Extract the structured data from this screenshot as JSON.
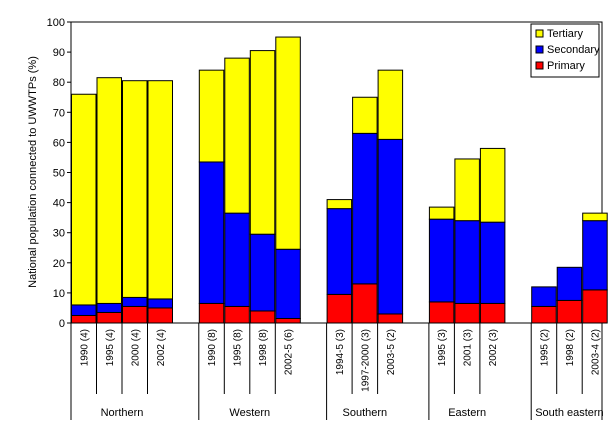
{
  "chart_data": {
    "type": "bar",
    "stacked": true,
    "ylabel": "National population connected to UWWTPs (%)",
    "ylim": [
      0,
      100
    ],
    "ytick_step": 10,
    "grid": false,
    "legend_position": "top-right",
    "groups": [
      {
        "name": "Northern",
        "categories": [
          "1990 (4)",
          "1995 (4)",
          "2000 (4)",
          "2002 (4)"
        ]
      },
      {
        "name": "Western",
        "categories": [
          "1990 (8)",
          "1995 (8)",
          "1998 (8)",
          "2002-5 (6)"
        ]
      },
      {
        "name": "Southern",
        "categories": [
          "1994-5 (3)",
          "1997-2000 (3)",
          "2003-5 (2)"
        ]
      },
      {
        "name": "Eastern",
        "categories": [
          "1995 (3)",
          "2001 (3)",
          "2002 (3)"
        ]
      },
      {
        "name": "South eastern",
        "categories": [
          "1995 (2)",
          "1998 (2)",
          "2003-4 (2)"
        ]
      }
    ],
    "series": [
      {
        "name": "Primary",
        "color": "#ff0000",
        "values": [
          2.5,
          3.5,
          5.5,
          5,
          6.5,
          5.5,
          4,
          1.5,
          9.5,
          13,
          3,
          7,
          6.5,
          6.5,
          5.5,
          7.5,
          11
        ]
      },
      {
        "name": "Secondary",
        "color": "#0000ff",
        "values": [
          3.5,
          3,
          3,
          3,
          47,
          31,
          25.5,
          23,
          28.5,
          50,
          58,
          27.5,
          27.5,
          27,
          6.5,
          11,
          23
        ]
      },
      {
        "name": "Tertiary",
        "color": "#ffff00",
        "values": [
          70,
          75,
          72,
          72.5,
          30.5,
          51.5,
          61,
          70.5,
          3,
          12,
          23,
          4,
          20.5,
          24.5,
          0,
          0,
          2.5
        ]
      }
    ],
    "legend_order": [
      "Tertiary",
      "Secondary",
      "Primary"
    ]
  }
}
